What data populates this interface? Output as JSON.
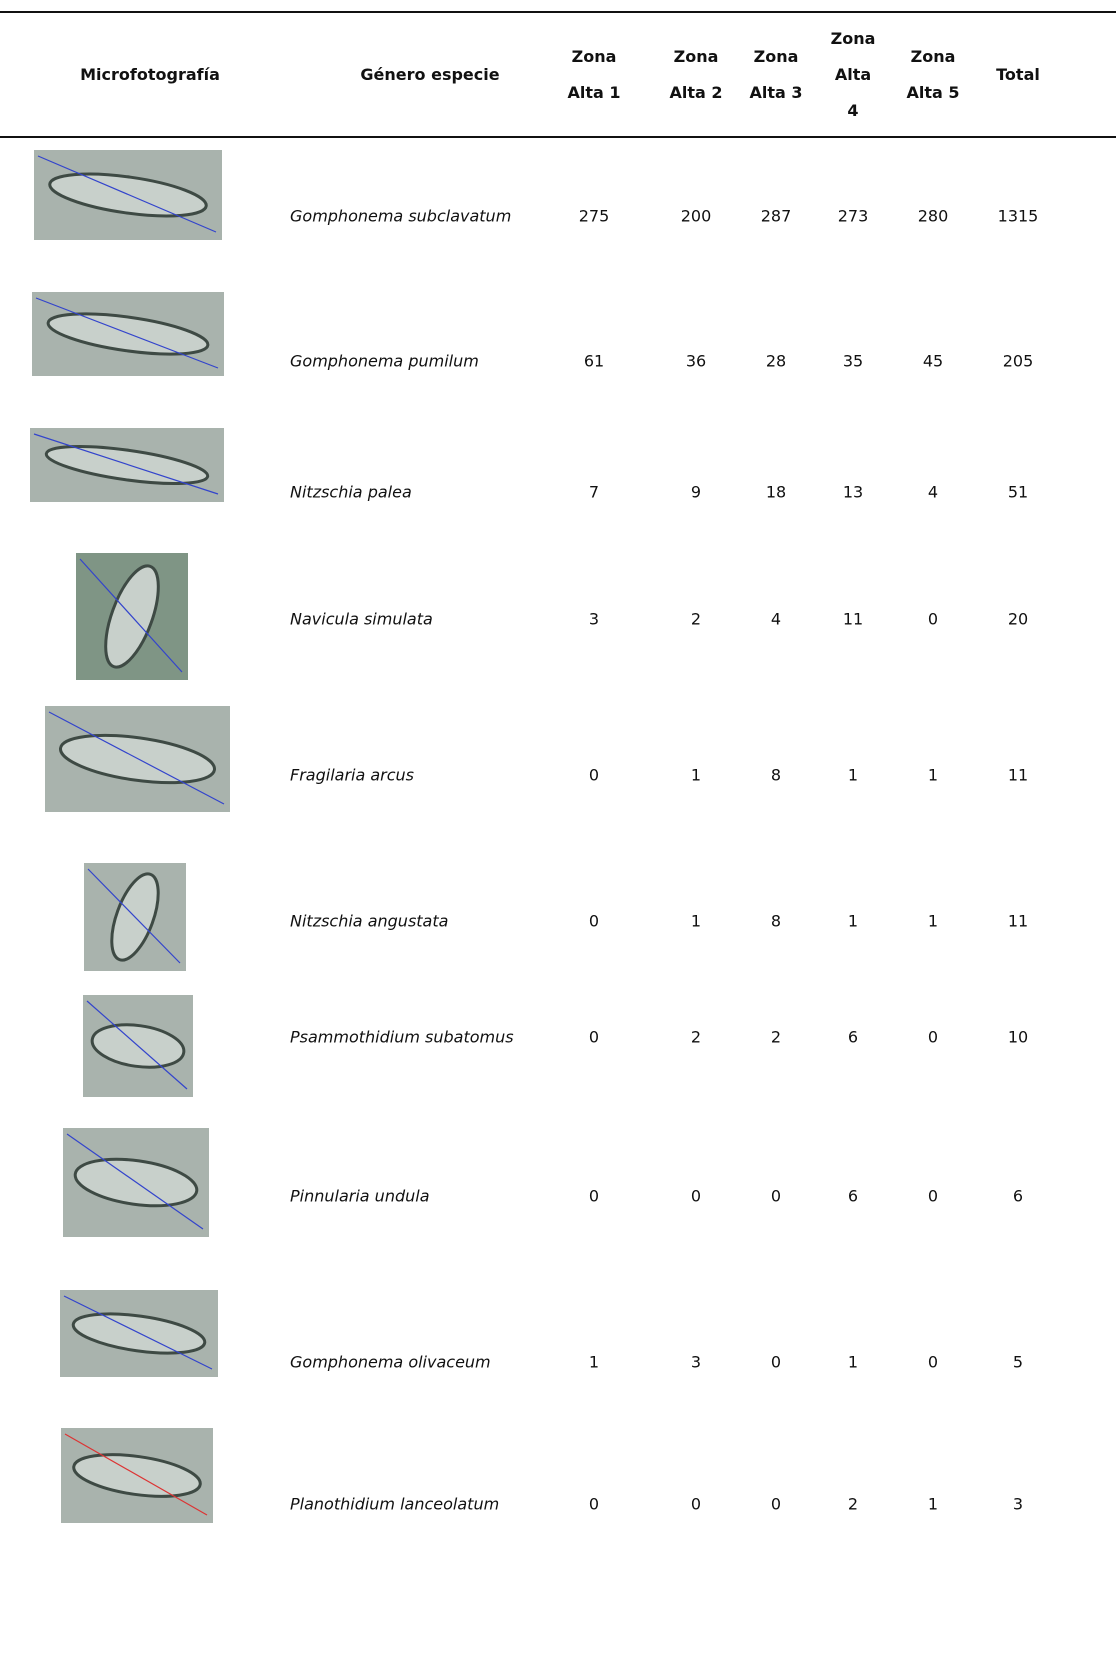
{
  "table": {
    "headers": [
      [
        "Microfotografía"
      ],
      [
        "Género especie"
      ],
      [
        "Zona",
        "Alta 1"
      ],
      [
        "Zona",
        "Alta 2"
      ],
      [
        "Zona",
        "Alta 3"
      ],
      [
        "Zona",
        "Alta",
        "4"
      ],
      [
        "Zona",
        "Alta 5"
      ],
      [
        "Total"
      ]
    ],
    "rows": [
      {
        "species": "Gomphonema subclavatum",
        "counts": [
          275,
          200,
          287,
          273,
          280
        ],
        "total": 1315
      },
      {
        "species": "Gomphonema pumilum",
        "counts": [
          61,
          36,
          28,
          35,
          45
        ],
        "total": 205
      },
      {
        "species": "Nitzschia palea",
        "counts": [
          7,
          9,
          18,
          13,
          4
        ],
        "total": 51
      },
      {
        "species": "Navicula simulata",
        "counts": [
          3,
          2,
          4,
          11,
          0
        ],
        "total": 20
      },
      {
        "species": "Fragilaria arcus",
        "counts": [
          0,
          1,
          8,
          1,
          1
        ],
        "total": 11
      },
      {
        "species": "Nitzschia angustata",
        "counts": [
          0,
          1,
          8,
          1,
          1
        ],
        "total": 11
      },
      {
        "species": "Psammothidium subatomus",
        "counts": [
          0,
          2,
          2,
          6,
          0
        ],
        "total": 10
      },
      {
        "species": "Pinnularia undula",
        "counts": [
          0,
          0,
          0,
          6,
          0
        ],
        "total": 6
      },
      {
        "species": "Gomphonema olivaceum",
        "counts": [
          1,
          3,
          0,
          1,
          0
        ],
        "total": 5
      },
      {
        "species": "Planothidium lanceolatum",
        "counts": [
          0,
          0,
          0,
          2,
          1
        ],
        "total": 3
      }
    ]
  }
}
